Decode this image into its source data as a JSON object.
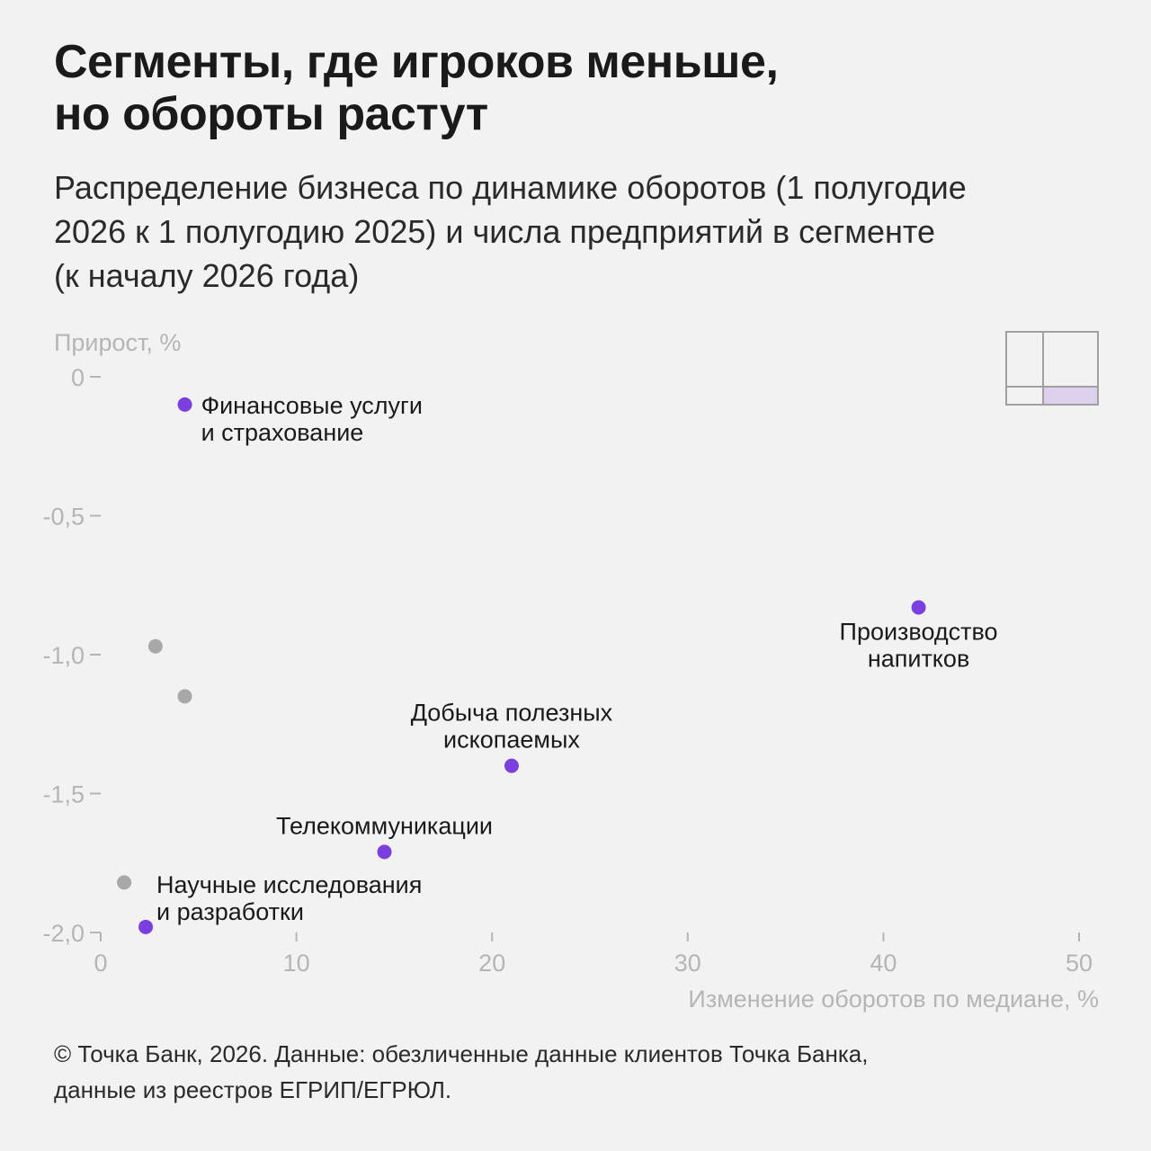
{
  "header": {
    "title_lines": [
      "Сегменты, где игроков меньше,",
      "но обороты растут"
    ],
    "subtitle_lines": [
      "Распределение бизнеса по динамике оборотов (1 полугодие",
      "2026 к 1 полугодию 2025) и числа предприятий в сегменте",
      "(к началу 2026 года)"
    ]
  },
  "colors": {
    "highlight": "#7b3fe0",
    "other": "#a8a8a8",
    "axis_text": "#b5b5b5",
    "label_text": "#1a1a1a",
    "quadrant_fill": "#ddd0ee",
    "quadrant_stroke": "#a0a0a0"
  },
  "chart_data": {
    "type": "scatter",
    "xlabel": "Изменение оборотов по медиане, %",
    "ylabel": "Прирост, %",
    "xlim": [
      0,
      50
    ],
    "ylim": [
      -2.0,
      0
    ],
    "x_ticks": [
      0,
      10,
      20,
      30,
      40,
      50
    ],
    "x_tick_labels": [
      "0",
      "10",
      "20",
      "30",
      "40",
      "50"
    ],
    "y_ticks": [
      0,
      -0.5,
      -1.0,
      -1.5,
      -2.0
    ],
    "y_tick_labels": [
      "0",
      "-0,5",
      "-1,0",
      "-1,5",
      "-2,0"
    ],
    "grid": false,
    "points": [
      {
        "x": 4.3,
        "y": -0.1,
        "highlight": true,
        "label_lines": [
          "Финансовые услуги",
          "и страхование"
        ],
        "label_pos": "right"
      },
      {
        "x": 41.8,
        "y": -0.83,
        "highlight": true,
        "label_lines": [
          "Производство",
          "напитков"
        ],
        "label_pos": "below"
      },
      {
        "x": 21.0,
        "y": -1.4,
        "highlight": true,
        "label_lines": [
          "Добыча полезных",
          "ископаемых"
        ],
        "label_pos": "above"
      },
      {
        "x": 14.5,
        "y": -1.71,
        "highlight": true,
        "label_lines": [
          "Телекоммуникации"
        ],
        "label_pos": "above"
      },
      {
        "x": 2.3,
        "y": -1.98,
        "highlight": true,
        "label_lines": [
          "Научные исследования",
          "и разработки"
        ],
        "label_pos": "above-right"
      },
      {
        "x": 2.8,
        "y": -0.97,
        "highlight": false,
        "label_lines": []
      },
      {
        "x": 4.3,
        "y": -1.15,
        "highlight": false,
        "label_lines": []
      },
      {
        "x": 1.2,
        "y": -1.82,
        "highlight": false,
        "label_lines": []
      }
    ]
  },
  "footer": {
    "lines": [
      "© Точка Банк, 2026. Данные: обезличенные данные клиентов Точка Банка,",
      "данные из реестров ЕГРИП/ЕГРЮЛ."
    ]
  }
}
